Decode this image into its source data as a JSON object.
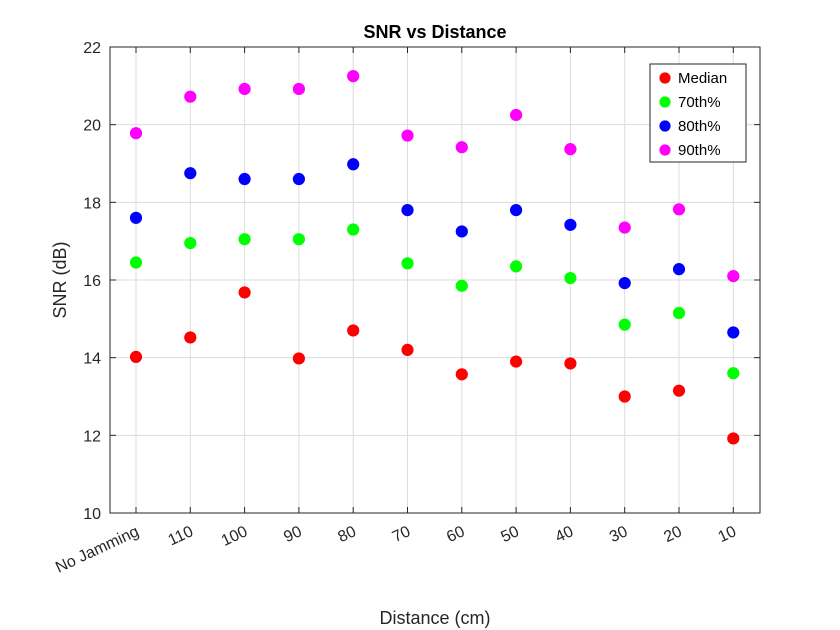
{
  "chart_data": {
    "type": "scatter",
    "title": "SNR vs Distance",
    "xlabel": "Distance (cm)",
    "ylabel": "SNR (dB)",
    "categories": [
      "No Jamming",
      "110",
      "100",
      "90",
      "80",
      "70",
      "60",
      "50",
      "40",
      "30",
      "20",
      "10"
    ],
    "ylim": [
      10,
      22
    ],
    "yticks": [
      10,
      12,
      14,
      16,
      18,
      20,
      22
    ],
    "grid": true,
    "legend_position": "top-right",
    "series": [
      {
        "name": "Median",
        "color": "#ff0000",
        "values": [
          14.02,
          14.52,
          15.68,
          13.98,
          14.7,
          14.2,
          13.57,
          13.9,
          13.85,
          13.0,
          13.15,
          11.92
        ]
      },
      {
        "name": "70th%",
        "color": "#00ff00",
        "values": [
          16.45,
          16.95,
          17.05,
          17.05,
          17.3,
          16.43,
          15.85,
          16.35,
          16.05,
          14.85,
          15.15,
          13.6
        ]
      },
      {
        "name": "80th%",
        "color": "#0000ff",
        "values": [
          17.6,
          18.75,
          18.6,
          18.6,
          18.98,
          17.8,
          17.25,
          17.8,
          17.42,
          15.92,
          16.28,
          14.65
        ]
      },
      {
        "name": "90th%",
        "color": "#ff00ff",
        "values": [
          19.78,
          20.72,
          20.92,
          20.92,
          21.25,
          19.72,
          19.42,
          20.25,
          19.37,
          17.35,
          17.82,
          16.1
        ]
      }
    ]
  }
}
